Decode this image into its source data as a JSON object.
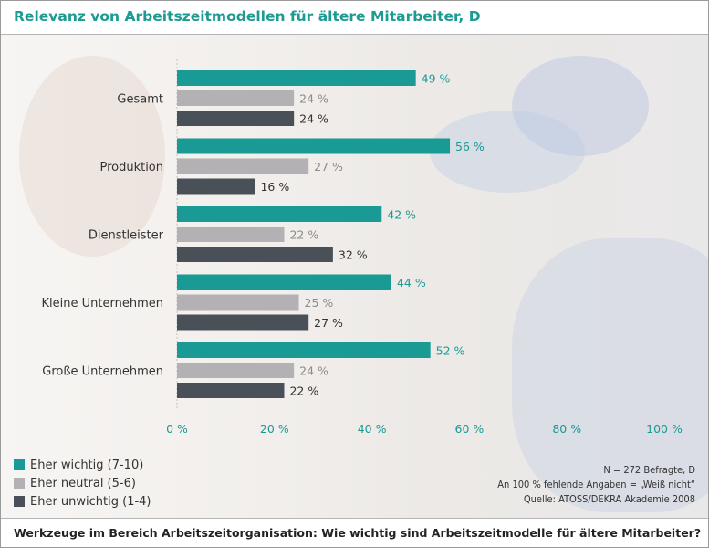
{
  "header": {
    "title": "Relevanz von Arbeitszeitmodellen für ältere Mitarbeiter, D"
  },
  "chart_data": {
    "type": "bar",
    "orientation": "horizontal",
    "title": "Relevanz von Arbeitszeitmodellen für ältere Mitarbeiter, D",
    "categories": [
      "Gesamt",
      "Produktion",
      "Dienstleister",
      "Kleine Unternehmen",
      "Große Unternehmen"
    ],
    "series": [
      {
        "name": "Eher wichtig (7-10)",
        "values": [
          49,
          56,
          42,
          44,
          52
        ],
        "labels": [
          "49 %",
          "56 %",
          "42 %",
          "44 %",
          "52 %"
        ],
        "color": "#1a9a94",
        "label_color": "#1a9a94"
      },
      {
        "name": "Eher neutral (5-6)",
        "values": [
          24,
          27,
          22,
          25,
          24
        ],
        "labels": [
          "24 %",
          "27 %",
          "22 %",
          "25 %",
          "24 %"
        ],
        "color": "#b3b1b3",
        "label_color": "#8c8a8c"
      },
      {
        "name": "Eher unwichtig (1-4)",
        "values": [
          24,
          16,
          32,
          27,
          22
        ],
        "labels": [
          "24 %",
          "16 %",
          "32 %",
          "27 %",
          "22 %"
        ],
        "color": "#4a5058",
        "label_color": "#333333"
      }
    ],
    "xlim": [
      0,
      100
    ],
    "xticks": [
      0,
      20,
      40,
      60,
      80,
      100
    ],
    "xtick_labels": [
      "0 %",
      "20 %",
      "40 %",
      "60 %",
      "80 %",
      "100 %"
    ],
    "tick_color": "#1a9a94",
    "legend_position": "bottom-left"
  },
  "notes": {
    "n": "N = 272 Befragte, D",
    "missing": "An 100 % fehlende Angaben = „Weiß nicht“",
    "source": "Quelle: ATOSS/DEKRA Akademie 2008"
  },
  "footer": {
    "question": "Werkzeuge im Bereich Arbeitszeitorganisation: Wie wichtig sind Arbeitszeitmodelle für ältere Mitarbeiter?"
  }
}
